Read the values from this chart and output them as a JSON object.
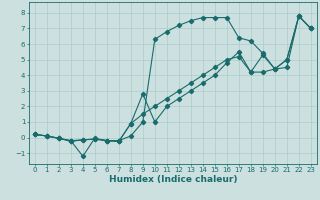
{
  "xlabel": "Humidex (Indice chaleur)",
  "xlim": [
    -0.5,
    23.5
  ],
  "ylim": [
    -1.7,
    8.7
  ],
  "xticks": [
    0,
    1,
    2,
    3,
    4,
    5,
    6,
    7,
    8,
    9,
    10,
    11,
    12,
    13,
    14,
    15,
    16,
    17,
    18,
    19,
    20,
    21,
    22,
    23
  ],
  "yticks": [
    -1,
    0,
    1,
    2,
    3,
    4,
    5,
    6,
    7,
    8
  ],
  "background_color": "#cce0e0",
  "grid_color": "#aacccc",
  "line_color": "#1a6b6b",
  "line1_x": [
    0,
    1,
    2,
    3,
    4,
    5,
    6,
    7,
    8,
    9,
    10,
    11,
    12,
    13,
    14,
    15,
    16,
    17,
    18,
    19,
    20,
    21,
    22,
    23
  ],
  "line1_y": [
    0.2,
    0.1,
    -0.05,
    -0.2,
    -1.2,
    -0.05,
    -0.2,
    -0.2,
    0.1,
    1.0,
    6.3,
    6.8,
    7.2,
    7.5,
    7.7,
    7.7,
    7.7,
    6.4,
    6.2,
    5.4,
    4.4,
    4.5,
    7.8,
    7.0
  ],
  "line2_x": [
    0,
    1,
    2,
    3,
    4,
    5,
    6,
    7,
    8,
    9,
    10,
    11,
    12,
    13,
    14,
    15,
    16,
    17,
    18,
    19,
    20,
    21,
    22,
    23
  ],
  "line2_y": [
    0.2,
    0.1,
    -0.05,
    -0.2,
    -0.15,
    -0.1,
    -0.2,
    -0.25,
    0.9,
    2.8,
    1.0,
    2.0,
    2.5,
    3.0,
    3.5,
    4.0,
    4.8,
    5.5,
    4.2,
    5.3,
    4.4,
    5.0,
    7.8,
    7.0
  ],
  "line3_x": [
    0,
    1,
    2,
    3,
    4,
    5,
    6,
    7,
    8,
    9,
    10,
    11,
    12,
    13,
    14,
    15,
    16,
    17,
    18,
    19,
    20,
    21,
    22,
    23
  ],
  "line3_y": [
    0.2,
    0.1,
    -0.05,
    -0.25,
    -0.15,
    -0.1,
    -0.2,
    -0.25,
    0.9,
    1.5,
    2.0,
    2.5,
    3.0,
    3.5,
    4.0,
    4.5,
    5.0,
    5.2,
    4.2,
    4.2,
    4.4,
    5.0,
    7.8,
    7.0
  ]
}
